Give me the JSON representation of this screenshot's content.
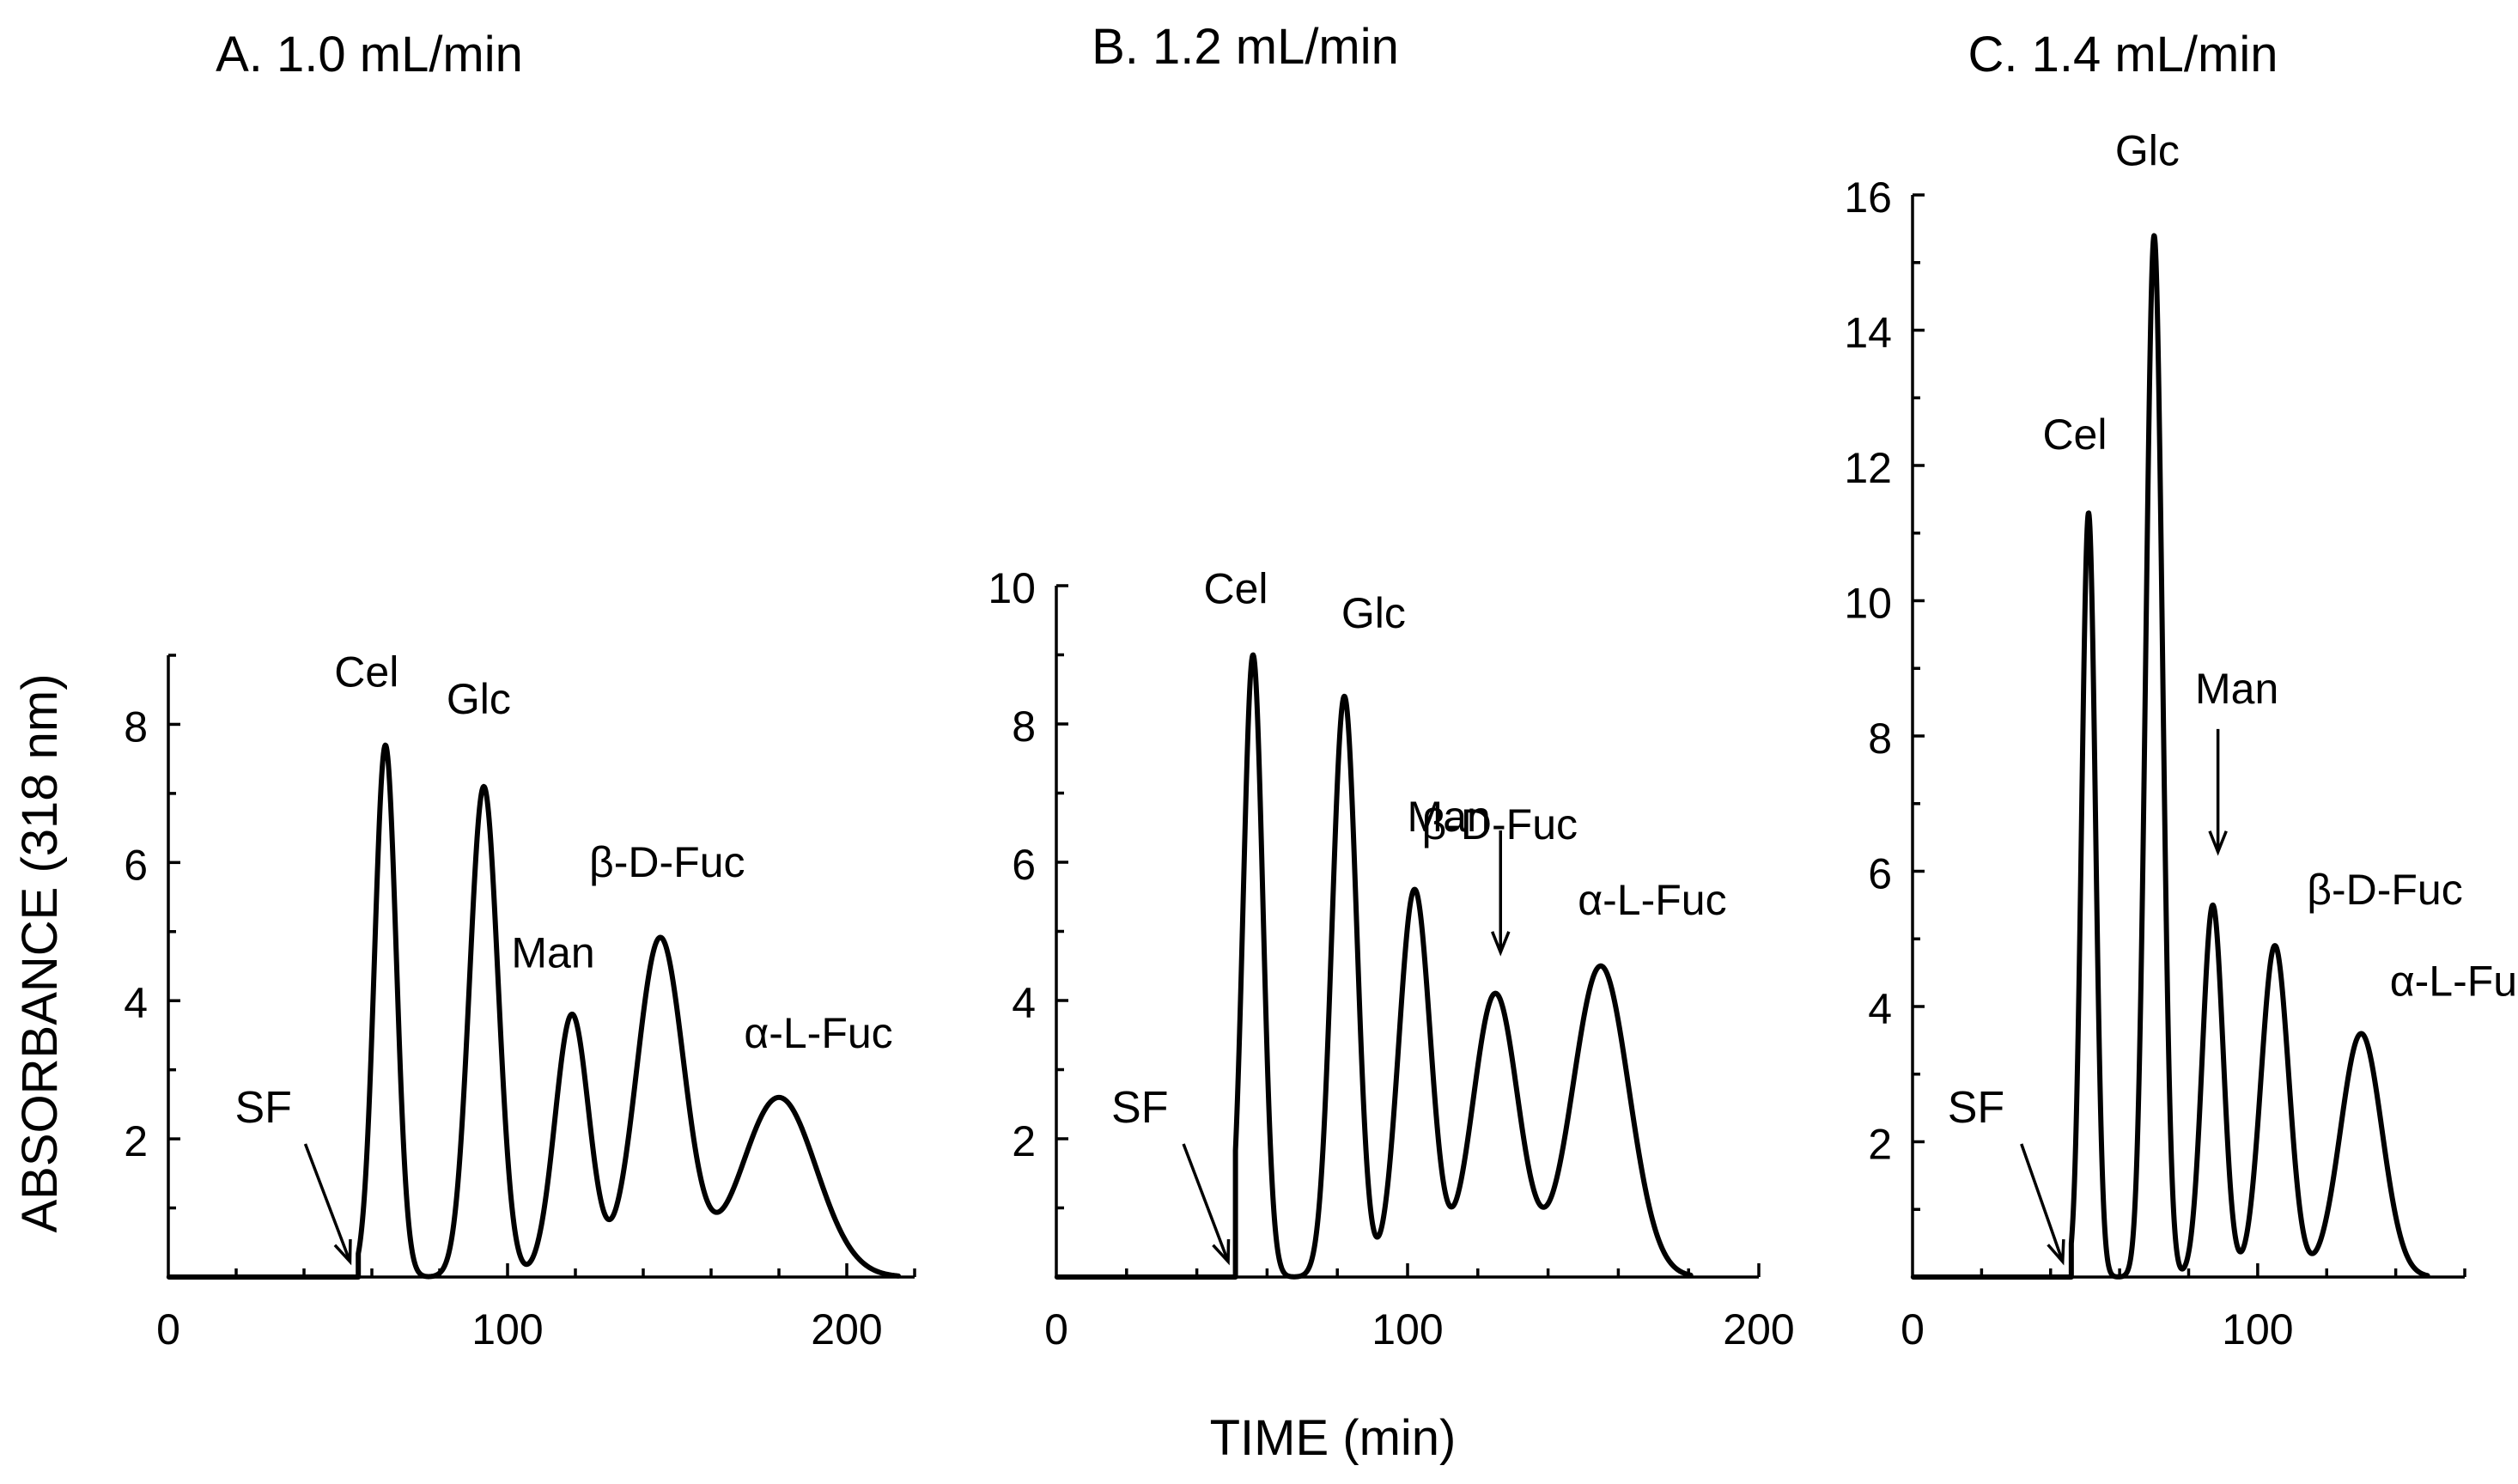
{
  "chart_data": [
    {
      "type": "line",
      "panel": "A",
      "title": "A. 1.0 mL/min",
      "xlim": [
        0,
        220
      ],
      "ylim": [
        0,
        9
      ],
      "x_ticks": [
        0,
        100,
        200
      ],
      "y_ticks": [
        2,
        4,
        6,
        8
      ],
      "peaks": [
        {
          "name": "Cel",
          "time": 64,
          "height": 7.7,
          "width": 3.2
        },
        {
          "name": "Glc",
          "time": 93,
          "height": 7.1,
          "width": 4.2
        },
        {
          "name": "Man",
          "time": 119,
          "height": 3.8,
          "width": 5.0
        },
        {
          "name": "β-D-Fuc",
          "time": 145,
          "height": 4.9,
          "width": 7.0
        },
        {
          "name": "α-L-Fuc",
          "time": 180,
          "height": 2.6,
          "width": 11.0
        }
      ],
      "markers": [
        {
          "label": "SF",
          "time": 50
        }
      ],
      "peak_labels": [
        "Cel",
        "Glc",
        "Man",
        "β-D-Fuc",
        "α-L-Fuc"
      ]
    },
    {
      "type": "line",
      "panel": "B",
      "title": "B. 1.2 mL/min",
      "xlim": [
        0,
        200
      ],
      "ylim": [
        0,
        10
      ],
      "x_ticks": [
        0,
        100,
        200
      ],
      "y_ticks": [
        2,
        4,
        6,
        8,
        10
      ],
      "peaks": [
        {
          "name": "Cel",
          "time": 56,
          "height": 9.0,
          "width": 2.8
        },
        {
          "name": "Glc",
          "time": 82,
          "height": 8.4,
          "width": 3.5
        },
        {
          "name": "Man",
          "time": 102,
          "height": 5.6,
          "width": 4.5
        },
        {
          "name": "β-D-Fuc",
          "time": 125,
          "height": 4.1,
          "width": 6.5
        },
        {
          "name": "α-L-Fuc",
          "time": 155,
          "height": 4.5,
          "width": 8.0
        }
      ],
      "markers": [
        {
          "label": "SF",
          "time": 45
        }
      ],
      "peak_labels": [
        "Cel",
        "Glc",
        "Man",
        "β-D-Fuc",
        "α-L-Fuc"
      ]
    },
    {
      "type": "line",
      "panel": "C",
      "title": "C. 1.4 mL/min",
      "xlim": [
        0,
        160
      ],
      "ylim": [
        0,
        16
      ],
      "x_ticks": [
        0,
        100
      ],
      "y_ticks": [
        2,
        4,
        6,
        8,
        10,
        12,
        14,
        16
      ],
      "peaks": [
        {
          "name": "Cel",
          "time": 51,
          "height": 11.3,
          "width": 2.0
        },
        {
          "name": "Glc",
          "time": 70,
          "height": 15.4,
          "width": 2.4
        },
        {
          "name": "Man",
          "time": 87,
          "height": 5.5,
          "width": 3.0
        },
        {
          "name": "β-D-Fuc",
          "time": 105,
          "height": 4.9,
          "width": 4.0
        },
        {
          "name": "α-L-Fuc",
          "time": 130,
          "height": 3.6,
          "width": 6.0
        }
      ],
      "markers": [
        {
          "label": "SF",
          "time": 40
        }
      ],
      "peak_labels": [
        "Cel",
        "Glc",
        "Man",
        "β-D-Fuc",
        "α-L-Fuc"
      ]
    }
  ],
  "ylabel": "ABSORBANCE (318 nm)",
  "xlabel": "TIME (min)"
}
